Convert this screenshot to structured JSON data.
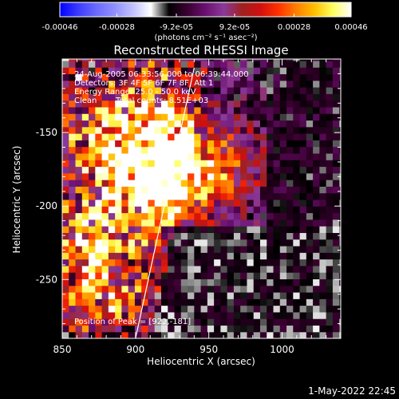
{
  "colorbar": {
    "tick_labels": [
      "-0.00046",
      "-0.00028",
      "-9.2e-05",
      "9.2e-05",
      "0.00028",
      "0.00046"
    ],
    "tick_values": [
      -0.00046,
      -0.00028,
      -9.2e-05,
      9.2e-05,
      0.00028,
      0.00046
    ],
    "range": [
      -0.00046,
      0.00046
    ],
    "unit_label": "(photons cm⁻² s⁻¹ asec⁻²)",
    "colors": [
      "#0000ff",
      "#3b3bff",
      "#6a6aff",
      "#8f8fff",
      "#c0c0ff",
      "#ffffff",
      "#000000",
      "#3a0030",
      "#6a1070",
      "#8a3a9a",
      "#a02020",
      "#d01010",
      "#ff3000",
      "#ff8000",
      "#ffc000",
      "#ffff60",
      "#ffffff"
    ]
  },
  "plot": {
    "title": "Reconstructed RHESSI Image",
    "xlabel": "Heliocentric X (arcsec)",
    "ylabel": "Heliocentric Y (arcsec)",
    "xlim": [
      850,
      1040
    ],
    "ylim": [
      -290,
      -100
    ],
    "x_ticks": [
      "850",
      "900",
      "950",
      "1000"
    ],
    "x_tick_values": [
      850,
      900,
      950,
      1000
    ],
    "y_ticks": [
      "-150",
      "-200",
      "-250"
    ],
    "y_tick_values": [
      -150,
      -200,
      -250
    ]
  },
  "info": {
    "time_range": "24-Aug-2005 06:33:56.000 to 06:39:44.000",
    "detectors": "Detectors: 3F 4F 5F 6F 7F 8F, Att 1",
    "energy": "Energy Range: 25.0 - 50.0 keV",
    "method": "Clean",
    "counts": "Total counts: 8.51E+03",
    "peak": "Position of Peak = [922,-181]"
  },
  "footer": {
    "date": "1-May-2022 22:45"
  },
  "chart_data": {
    "type": "heatmap",
    "title": "Reconstructed RHESSI Image",
    "xlabel": "Heliocentric X (arcsec)",
    "ylabel": "Heliocentric Y (arcsec)",
    "xlim": [
      850,
      1040
    ],
    "ylim": [
      -290,
      -100
    ],
    "colorbar_range": [
      -0.00046,
      0.00046
    ],
    "peak_position": [
      922,
      -181
    ],
    "limb_line": [
      [
        900,
        -290
      ],
      [
        940,
        -106
      ]
    ],
    "emission_regions": [
      {
        "x": 922,
        "y": -181,
        "intensity": 0.00046
      },
      {
        "x": 905,
        "y": -165,
        "intensity": 0.0003
      },
      {
        "x": 945,
        "y": -180,
        "intensity": 0.0003
      },
      {
        "x": 960,
        "y": -170,
        "intensity": 0.00022
      },
      {
        "x": 870,
        "y": -210,
        "intensity": 0.00025
      },
      {
        "x": 880,
        "y": -255,
        "intensity": 0.00028
      },
      {
        "x": 875,
        "y": -150,
        "intensity": 0.00018
      },
      {
        "x": 910,
        "y": -120,
        "intensity": 0.00015
      }
    ]
  }
}
